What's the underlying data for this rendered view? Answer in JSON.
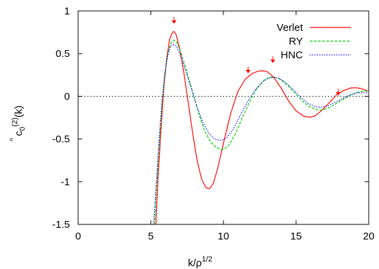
{
  "chart_data": {
    "type": "line",
    "title": "",
    "xlabel": "k/ρ",
    "xlabel_sup": "1/2",
    "ylabel_main": "c",
    "ylabel_hat": "^",
    "ylabel_sub": "0",
    "ylabel_sup": "(2)",
    "ylabel_tail": "(k)",
    "xlim": [
      0,
      20
    ],
    "ylim": [
      -1.5,
      1
    ],
    "x_ticks": [
      0,
      5,
      10,
      15,
      20
    ],
    "x_tick_labels": [
      "0",
      "5",
      "10",
      "15",
      "20"
    ],
    "y_ticks": [
      1,
      0.5,
      0,
      -0.5,
      -1,
      -1.5
    ],
    "y_tick_labels": [
      "1",
      "0.5",
      "0",
      "-0.5",
      "-1",
      "-1.5"
    ],
    "zero_line": true,
    "grid": false,
    "legend_position": "top-right",
    "series": [
      {
        "name": "Verlet",
        "color": "#ff0000",
        "style": "solid",
        "x": [
          5.35,
          5.5,
          5.7,
          5.9,
          6.1,
          6.3,
          6.5,
          6.6,
          6.75,
          7.0,
          7.3,
          7.6,
          7.9,
          8.2,
          8.5,
          8.8,
          9.05,
          9.3,
          9.6,
          10.0,
          10.5,
          11.0,
          11.5,
          12.0,
          12.4,
          12.7,
          13.0,
          13.3,
          13.6,
          14.0,
          14.5,
          15.0,
          15.5,
          15.9,
          16.3,
          16.8,
          17.3,
          17.8,
          18.3,
          18.8,
          19.2,
          19.5,
          19.8,
          20.0
        ],
        "y": [
          -1.5,
          -0.95,
          -0.4,
          0.1,
          0.45,
          0.67,
          0.75,
          0.76,
          0.72,
          0.55,
          0.25,
          -0.1,
          -0.45,
          -0.76,
          -0.97,
          -1.07,
          -1.08,
          -1.02,
          -0.85,
          -0.55,
          -0.2,
          0.06,
          0.2,
          0.27,
          0.295,
          0.3,
          0.29,
          0.25,
          0.19,
          0.09,
          -0.06,
          -0.17,
          -0.23,
          -0.245,
          -0.23,
          -0.16,
          -0.07,
          0.02,
          0.07,
          0.1,
          0.1,
          0.09,
          0.07,
          0.06
        ]
      },
      {
        "name": "RY",
        "color": "#00cc00",
        "style": "dashed",
        "x": [
          5.25,
          5.4,
          5.6,
          5.8,
          6.0,
          6.2,
          6.4,
          6.6,
          6.8,
          7.1,
          7.5,
          7.9,
          8.3,
          8.7,
          9.1,
          9.5,
          9.9,
          10.3,
          10.8,
          11.3,
          11.8,
          12.3,
          12.8,
          13.2,
          13.5,
          13.9,
          14.4,
          14.9,
          15.4,
          15.9,
          16.4,
          16.8,
          17.3,
          17.8,
          18.3,
          18.8,
          19.3,
          19.7,
          20.0
        ],
        "y": [
          -1.5,
          -1.05,
          -0.5,
          -0.05,
          0.3,
          0.52,
          0.63,
          0.66,
          0.63,
          0.5,
          0.28,
          0.04,
          -0.2,
          -0.4,
          -0.53,
          -0.6,
          -0.625,
          -0.59,
          -0.45,
          -0.25,
          -0.06,
          0.09,
          0.19,
          0.225,
          0.225,
          0.2,
          0.13,
          0.04,
          -0.05,
          -0.12,
          -0.155,
          -0.16,
          -0.13,
          -0.08,
          -0.03,
          0.02,
          0.05,
          0.065,
          0.06
        ]
      },
      {
        "name": "HNC",
        "color": "#0000ff",
        "style": "dotted",
        "x": [
          5.2,
          5.35,
          5.55,
          5.75,
          5.95,
          6.15,
          6.35,
          6.55,
          6.75,
          7.0,
          7.4,
          7.8,
          8.2,
          8.6,
          9.0,
          9.4,
          9.8,
          10.2,
          10.7,
          11.2,
          11.7,
          12.2,
          12.7,
          13.1,
          13.5,
          13.9,
          14.3,
          14.8,
          15.3,
          15.8,
          16.3,
          16.7,
          17.2,
          17.7,
          18.2,
          18.7,
          19.2,
          19.6,
          20.0
        ],
        "y": [
          -1.5,
          -1.1,
          -0.55,
          -0.1,
          0.25,
          0.47,
          0.58,
          0.61,
          0.59,
          0.5,
          0.3,
          0.08,
          -0.13,
          -0.31,
          -0.43,
          -0.5,
          -0.515,
          -0.49,
          -0.38,
          -0.21,
          -0.05,
          0.08,
          0.17,
          0.215,
          0.225,
          0.205,
          0.16,
          0.08,
          -0.01,
          -0.08,
          -0.12,
          -0.13,
          -0.11,
          -0.07,
          -0.025,
          0.015,
          0.04,
          0.045,
          0.04
        ]
      }
    ],
    "annotations": [
      {
        "type": "arrow",
        "x": 6.6,
        "y_from": 0.93,
        "y_to": 0.85,
        "color": "#ff0000"
      },
      {
        "type": "arrow",
        "x": 11.7,
        "y_from": 0.35,
        "y_to": 0.27,
        "color": "#ff0000"
      },
      {
        "type": "arrow",
        "x": 13.4,
        "y_from": 0.47,
        "y_to": 0.39,
        "color": "#ff0000"
      },
      {
        "type": "arrow",
        "x": 17.9,
        "y_from": 0.09,
        "y_to": 0.01,
        "color": "#ff0000"
      }
    ]
  }
}
